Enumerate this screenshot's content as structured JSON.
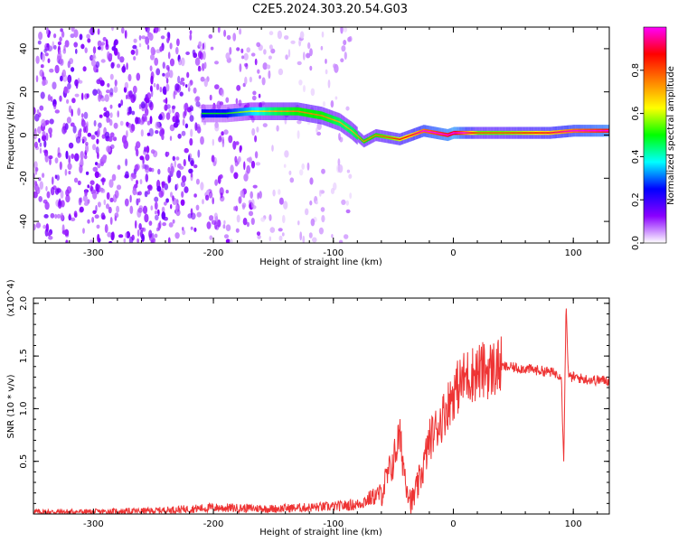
{
  "title": "C2E5.2024.303.20.54.G03",
  "chart_data": [
    {
      "type": "heatmap",
      "xlabel": "Height of straight line (km)",
      "ylabel": "Frequency (Hz)",
      "xlim": [
        -350,
        130
      ],
      "ylim": [
        -50,
        50
      ],
      "x_ticks": [
        -300,
        -200,
        -100,
        0,
        100
      ],
      "y_ticks": [
        -40,
        -20,
        0,
        20,
        40
      ],
      "colorbar": {
        "label": "Normalized spectral amplitude",
        "range": [
          0,
          1
        ],
        "ticks": [
          "0.0",
          "0.2",
          "0.4",
          "0.6",
          "0.8"
        ],
        "colors": [
          "#ffffff",
          "#8a00ff",
          "#0000ff",
          "#00ffff",
          "#00ff00",
          "#ffff00",
          "#ff8000",
          "#ff0000",
          "#ff00ff"
        ]
      },
      "ridge": {
        "x": [
          -210,
          -190,
          -170,
          -150,
          -130,
          -110,
          -95,
          -85,
          -75,
          -65,
          -55,
          -45,
          -35,
          -25,
          -15,
          -5,
          0,
          20,
          40,
          60,
          80,
          100,
          130
        ],
        "y": [
          10,
          10,
          11,
          11,
          11,
          9,
          6,
          2,
          -3,
          0,
          -1,
          -2,
          0,
          2,
          1,
          0,
          1,
          1,
          1,
          1,
          1,
          2,
          2
        ],
        "amplitude": [
          0.25,
          0.25,
          0.35,
          0.45,
          0.5,
          0.5,
          0.45,
          0.45,
          0.5,
          0.5,
          0.55,
          0.6,
          0.65,
          0.75,
          0.8,
          0.85,
          0.9,
          0.55,
          0.55,
          0.6,
          0.65,
          0.75,
          0.85
        ]
      }
    },
    {
      "type": "line",
      "xlabel": "Height of straight line (km)",
      "ylabel": "SNR (10 * v/v)",
      "y_multiplier": "(x10^4)",
      "xlim": [
        -350,
        130
      ],
      "ylim": [
        0,
        2.05
      ],
      "x_ticks": [
        -300,
        -200,
        -100,
        0,
        100
      ],
      "y_ticks": [
        "0.5",
        "1.0",
        "1.5",
        "2.0"
      ],
      "color": "#ee3333",
      "x": [
        -350,
        -300,
        -250,
        -200,
        -150,
        -100,
        -80,
        -60,
        -50,
        -45,
        -40,
        -35,
        -30,
        -25,
        -20,
        -10,
        0,
        10,
        20,
        30,
        40,
        60,
        80,
        90,
        92,
        94,
        96,
        100,
        110,
        120,
        130
      ],
      "y": [
        0.02,
        0.02,
        0.03,
        0.06,
        0.05,
        0.07,
        0.09,
        0.2,
        0.5,
        0.75,
        0.35,
        0.1,
        0.25,
        0.45,
        0.7,
        0.9,
        1.15,
        1.3,
        1.35,
        1.37,
        1.4,
        1.38,
        1.35,
        1.32,
        0.5,
        2.0,
        1.3,
        1.3,
        1.28,
        1.27,
        1.27
      ]
    }
  ]
}
